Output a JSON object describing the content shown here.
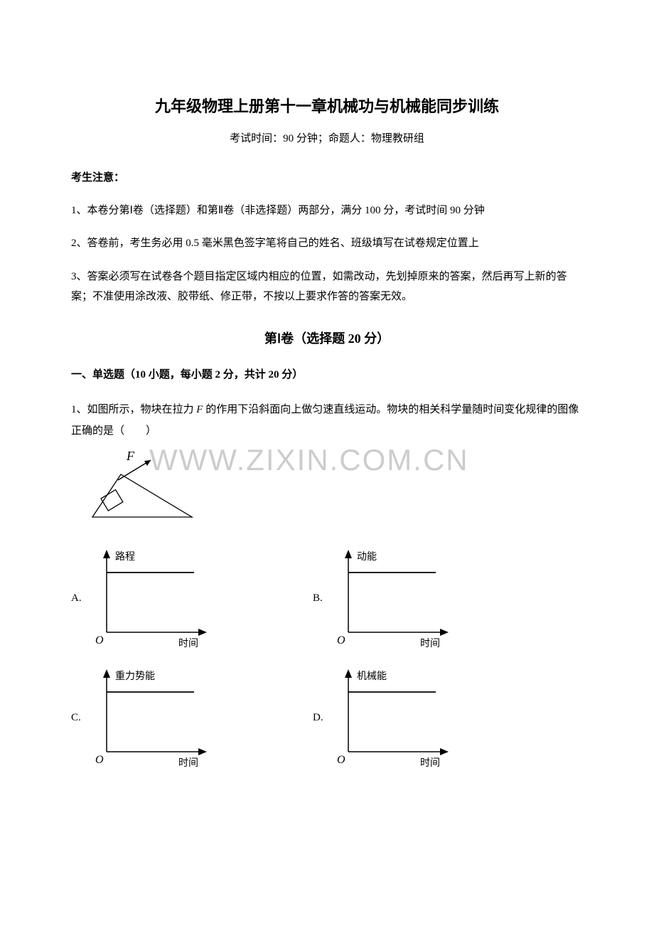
{
  "title": "九年级物理上册第十一章机械功与机械能同步训练",
  "subtitle": "考试时间：90 分钟；命题人：物理教研组",
  "notice_header": "考生注意：",
  "notices": [
    "1、本卷分第Ⅰ卷（选择题）和第Ⅱ卷（非选择题）两部分，满分 100 分，考试时间 90 分钟",
    "2、答卷前，考生务必用 0.5 毫米黑色签字笔将自己的姓名、班级填写在试卷规定位置上",
    "3、答案必须写在试卷各个题目指定区域内相应的位置，如需改动，先划掉原来的答案，然后再写上新的答案；不准使用涂改液、胶带纸、修正带，不按以上要求作答的答案无效。"
  ],
  "section_title": "第Ⅰ卷（选择题  20 分）",
  "question_type": "一、单选题（10 小题，每小题 2 分，共计 20 分）",
  "q1_text_before": "1、如图所示，物块在拉力 ",
  "q1_f": "F",
  "q1_text_after": " 的作用下沿斜面向上做匀速直线运动。物块的相关科学量随时间变化规律的图像正确的是（　　）",
  "watermark_text": "WWW.ZIXIN.COM.CN",
  "incline": {
    "F_label": "F",
    "stroke": "#000000",
    "stroke_width": 1.3
  },
  "charts": [
    {
      "label": "A.",
      "y_axis": "路程",
      "x_axis": "时间",
      "line_type": "horizontal"
    },
    {
      "label": "B.",
      "y_axis": "动能",
      "x_axis": "时间",
      "line_type": "horizontal"
    },
    {
      "label": "C.",
      "y_axis": "重力势能",
      "x_axis": "时间",
      "line_type": "horizontal"
    },
    {
      "label": "D.",
      "y_axis": "机械能",
      "x_axis": "时间",
      "line_type": "horizontal"
    }
  ],
  "chart_style": {
    "width": 175,
    "height": 150,
    "stroke": "#000000",
    "stroke_width": 1.5,
    "data_stroke_width": 1.8,
    "font_size": 14,
    "origin_label": "O",
    "origin_font": "italic 16px 'Times New Roman'"
  }
}
